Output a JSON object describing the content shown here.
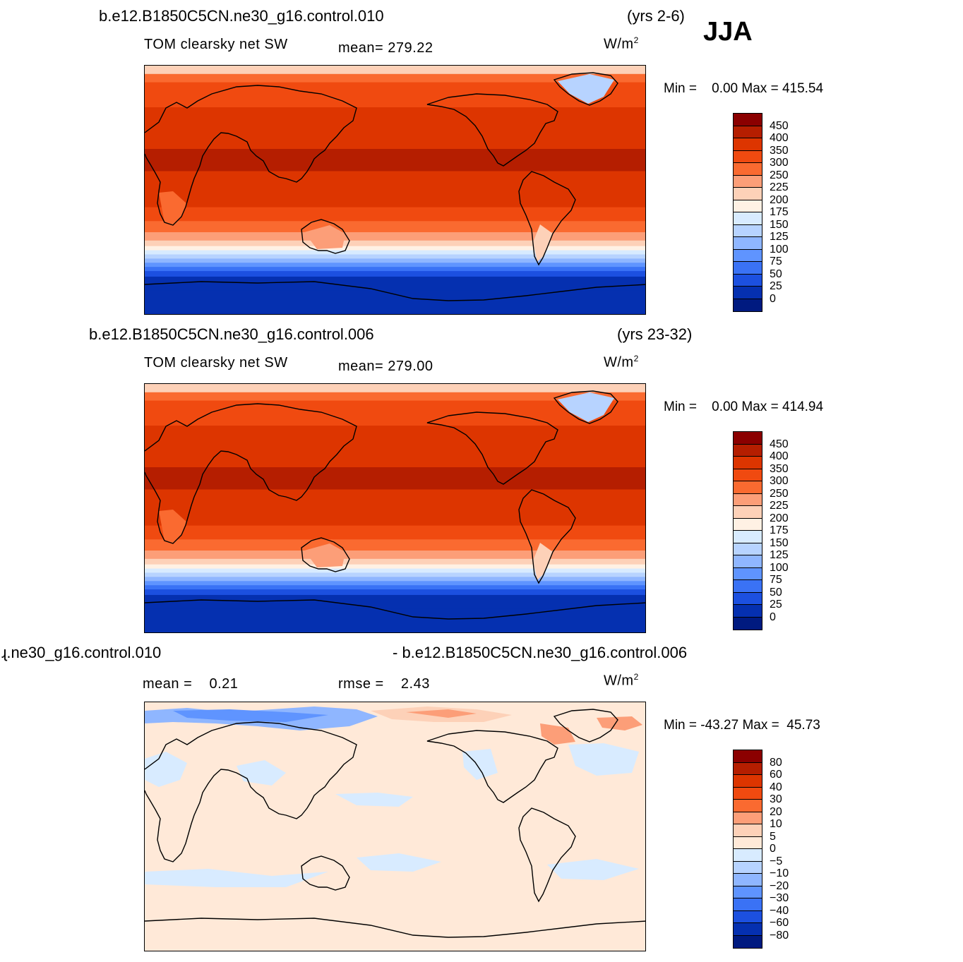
{
  "season": "JJA",
  "units_base": "W/m",
  "units_exp": "2",
  "panels": [
    {
      "case": "b.e12.B1850C5CN.ne30_g16.control.010",
      "years": "(yrs 2-6)",
      "variable": "TOM clearsky net SW",
      "mean_label": "mean=",
      "mean_value": "279.22",
      "min_label": "Min =",
      "min_value": "0.00",
      "max_label": "Max =",
      "max_value": "415.54"
    },
    {
      "case": "b.e12.B1850C5CN.ne30_g16.control.006",
      "years": "(yrs 23-32)",
      "variable": "TOM clearsky net SW",
      "mean_label": "mean=",
      "mean_value": "279.00",
      "min_label": "Min =",
      "min_value": "0.00",
      "max_label": "Max =",
      "max_value": "414.94"
    }
  ],
  "diff_panel": {
    "case_left": "ɻ.ne30_g16.control.010",
    "case_right": "- b.e12.B1850C5CN.ne30_g16.control.006",
    "mean_label": "mean =",
    "mean_value": "0.21",
    "rmse_label": "rmse =",
    "rmse_value": "2.43",
    "min_label": "Min =",
    "min_value": "-43.27",
    "max_label": "Max =",
    "max_value": "45.73"
  },
  "colorbars": {
    "abs": {
      "labels": [
        "450",
        "400",
        "350",
        "300",
        "250",
        "225",
        "200",
        "175",
        "150",
        "125",
        "100",
        "75",
        "50",
        "25",
        "0"
      ],
      "colors": [
        "#8b0000",
        "#b51e00",
        "#dd3500",
        "#f04a10",
        "#fa6a30",
        "#fc9e78",
        "#fdd1b8",
        "#fff1e4",
        "#d8ebff",
        "#b7d3ff",
        "#8fb6ff",
        "#5f94ff",
        "#3a72f5",
        "#1c50e0",
        "#0530b0",
        "#001a80"
      ]
    },
    "diff": {
      "labels": [
        "80",
        "60",
        "40",
        "30",
        "20",
        "10",
        "5",
        "0",
        "-5",
        "-10",
        "-20",
        "-30",
        "-40",
        "-60",
        "-80"
      ],
      "colors": [
        "#8b0000",
        "#b51e00",
        "#dd3500",
        "#f04a10",
        "#fa6a30",
        "#fc9e78",
        "#fdd1b8",
        "#ffe9d8",
        "#d8ebff",
        "#b7d3ff",
        "#8fb6ff",
        "#5f94ff",
        "#3a72f5",
        "#1c50e0",
        "#0530b0",
        "#001a80"
      ]
    }
  },
  "abs_field_bands": [
    {
      "lat": 90,
      "color": "#fdd1b8"
    },
    {
      "lat": 84,
      "color": "#fa6a30"
    },
    {
      "lat": 78,
      "color": "#f04a10"
    },
    {
      "lat": 60,
      "color": "#dd3500"
    },
    {
      "lat": 30,
      "color": "#b51e00"
    },
    {
      "lat": 14,
      "color": "#dd3500"
    },
    {
      "lat": -12,
      "color": "#f04a10"
    },
    {
      "lat": -22,
      "color": "#fa6a30"
    },
    {
      "lat": -30,
      "color": "#fc9e78"
    },
    {
      "lat": -36,
      "color": "#fdd1b8"
    },
    {
      "lat": -40,
      "color": "#fff1e4"
    },
    {
      "lat": -43,
      "color": "#d8ebff"
    },
    {
      "lat": -46,
      "color": "#b7d3ff"
    },
    {
      "lat": -49,
      "color": "#8fb6ff"
    },
    {
      "lat": -52,
      "color": "#5f94ff"
    },
    {
      "lat": -55,
      "color": "#3a72f5"
    },
    {
      "lat": -58,
      "color": "#1c50e0"
    },
    {
      "lat": -62,
      "color": "#0530b0"
    },
    {
      "lat": -72,
      "color": "#0530b0"
    }
  ]
}
